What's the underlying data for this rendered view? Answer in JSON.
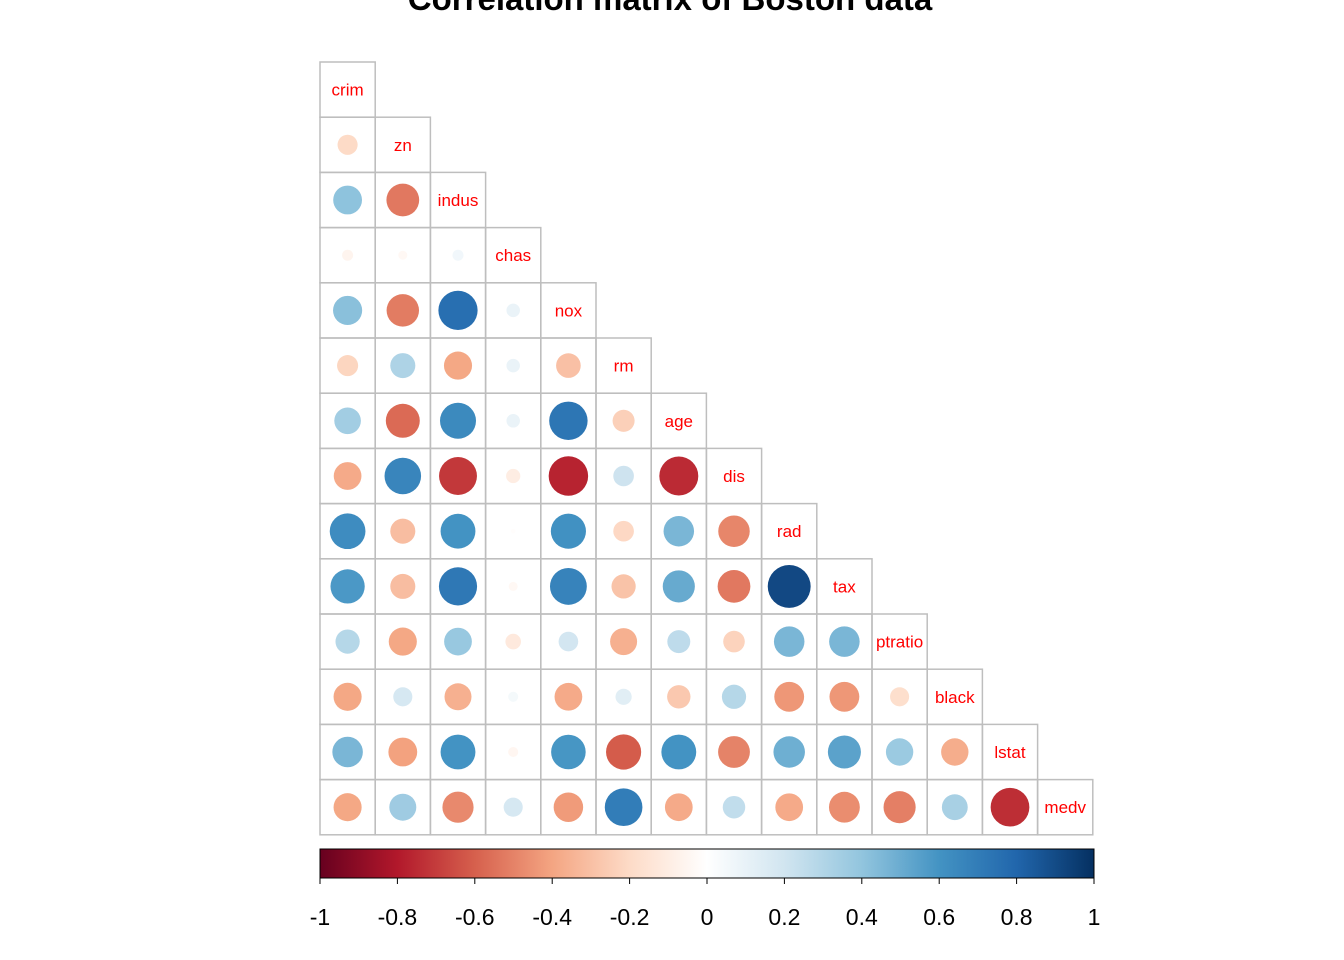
{
  "chart_data": {
    "type": "heatmap",
    "style": "corrplot-circle-lower",
    "title": "Correlation matrix of Boston data",
    "variables": [
      "crim",
      "zn",
      "indus",
      "chas",
      "nox",
      "rm",
      "age",
      "dis",
      "rad",
      "tax",
      "ptratio",
      "black",
      "lstat",
      "medv"
    ],
    "matrix_lower": [
      [
        1.0
      ],
      [
        -0.2,
        1.0
      ],
      [
        0.41,
        -0.53,
        1.0
      ],
      [
        -0.06,
        -0.04,
        0.06,
        1.0
      ],
      [
        0.42,
        -0.52,
        0.76,
        0.09,
        1.0
      ],
      [
        -0.22,
        0.31,
        -0.39,
        0.09,
        -0.3,
        1.0
      ],
      [
        0.35,
        -0.57,
        0.64,
        0.09,
        0.73,
        -0.24,
        1.0
      ],
      [
        -0.38,
        0.66,
        -0.71,
        -0.1,
        -0.77,
        0.21,
        -0.75,
        1.0
      ],
      [
        0.63,
        -0.31,
        0.6,
        -0.01,
        0.61,
        -0.21,
        0.46,
        -0.49,
        1.0
      ],
      [
        0.58,
        -0.31,
        0.72,
        -0.04,
        0.67,
        -0.29,
        0.51,
        -0.53,
        0.91,
        1.0
      ],
      [
        0.29,
        -0.39,
        0.38,
        -0.12,
        0.19,
        -0.36,
        0.26,
        -0.23,
        0.46,
        0.46,
        1.0
      ],
      [
        -0.39,
        0.18,
        -0.36,
        0.05,
        -0.38,
        0.13,
        -0.27,
        0.29,
        -0.44,
        -0.44,
        -0.18,
        1.0
      ],
      [
        0.46,
        -0.41,
        0.6,
        -0.05,
        0.59,
        -0.61,
        0.6,
        -0.5,
        0.49,
        0.54,
        0.37,
        -0.37,
        1.0
      ],
      [
        -0.39,
        0.36,
        -0.48,
        0.18,
        -0.43,
        0.7,
        -0.38,
        0.25,
        -0.38,
        -0.47,
        -0.51,
        0.33,
        -0.74,
        1.0
      ]
    ],
    "colorbar": {
      "min": -1,
      "max": 1,
      "ticks": [
        "-1",
        "-0.8",
        "-0.6",
        "-0.4",
        "-0.2",
        "0",
        "0.2",
        "0.4",
        "0.6",
        "0.8",
        "1"
      ]
    },
    "palette": [
      "#67001f",
      "#b2182b",
      "#d6604d",
      "#f4a582",
      "#fddbc7",
      "#ffffff",
      "#d1e5f0",
      "#92c5de",
      "#4393c3",
      "#2166ac",
      "#053061"
    ],
    "label_color": "#ff0000",
    "grid_color": "#bebebe"
  }
}
